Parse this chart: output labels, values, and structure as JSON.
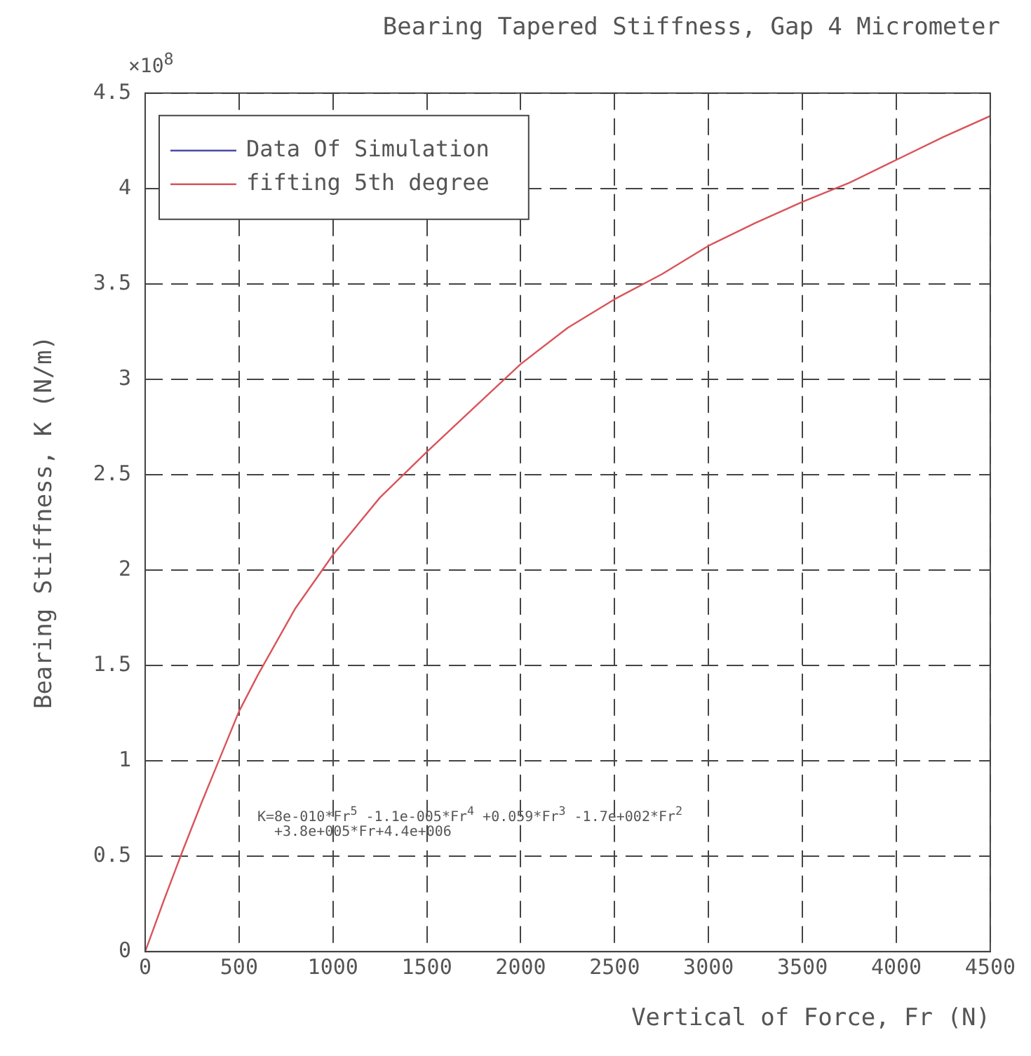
{
  "chart_data": {
    "type": "line",
    "title": "Bearing Tapered Stiffness, Gap 4 Micrometer",
    "xlabel": "Vertical of Force, Fr (N)",
    "ylabel": "Bearing Stiffness, K (N/m)",
    "annotations": [
      "×10$^{8}$",
      "K=8e-010*Fr$^{5}$ -1.1e-005*Fr$^{4}$ +0.059*Fr$^{3}$ -1.7e+002*Fr$^{2}$ +3.8e+005*Fr+4.4e+006"
    ],
    "x": [
      0,
      100,
      200,
      300,
      400,
      500,
      600,
      800,
      1000,
      1250,
      1500,
      1750,
      2000,
      2250,
      2500,
      2750,
      3000,
      3250,
      3500,
      3750,
      4000,
      4250,
      4500
    ],
    "series": [
      {
        "name": "Data Of Simulation",
        "color": "#4a4aa8",
        "values": [
          null,
          null,
          null,
          null,
          null,
          null,
          null,
          null,
          null,
          null,
          null,
          null,
          null,
          null,
          null,
          null,
          null,
          null,
          null,
          null,
          null,
          null,
          null
        ]
      },
      {
        "name": "fifting 5th degree",
        "color": "#d9545a",
        "values": [
          0,
          0.27,
          0.53,
          0.78,
          1.02,
          1.26,
          1.45,
          1.8,
          2.08,
          2.38,
          2.62,
          2.85,
          3.08,
          3.27,
          3.42,
          3.55,
          3.7,
          3.82,
          3.93,
          4.03,
          4.15,
          4.27,
          4.38
        ]
      }
    ],
    "xlim": [
      0,
      4500
    ],
    "xticks": [
      0,
      500,
      1000,
      1500,
      2000,
      2500,
      3000,
      3500,
      4000,
      4500
    ],
    "ylim": [
      0,
      4.5
    ],
    "yticks": [
      0,
      0.5,
      1,
      1.5,
      2,
      2.5,
      3,
      3.5,
      4,
      4.5
    ],
    "grid": true,
    "legend": "top left",
    "line_style": "solid",
    "marker": "none"
  }
}
